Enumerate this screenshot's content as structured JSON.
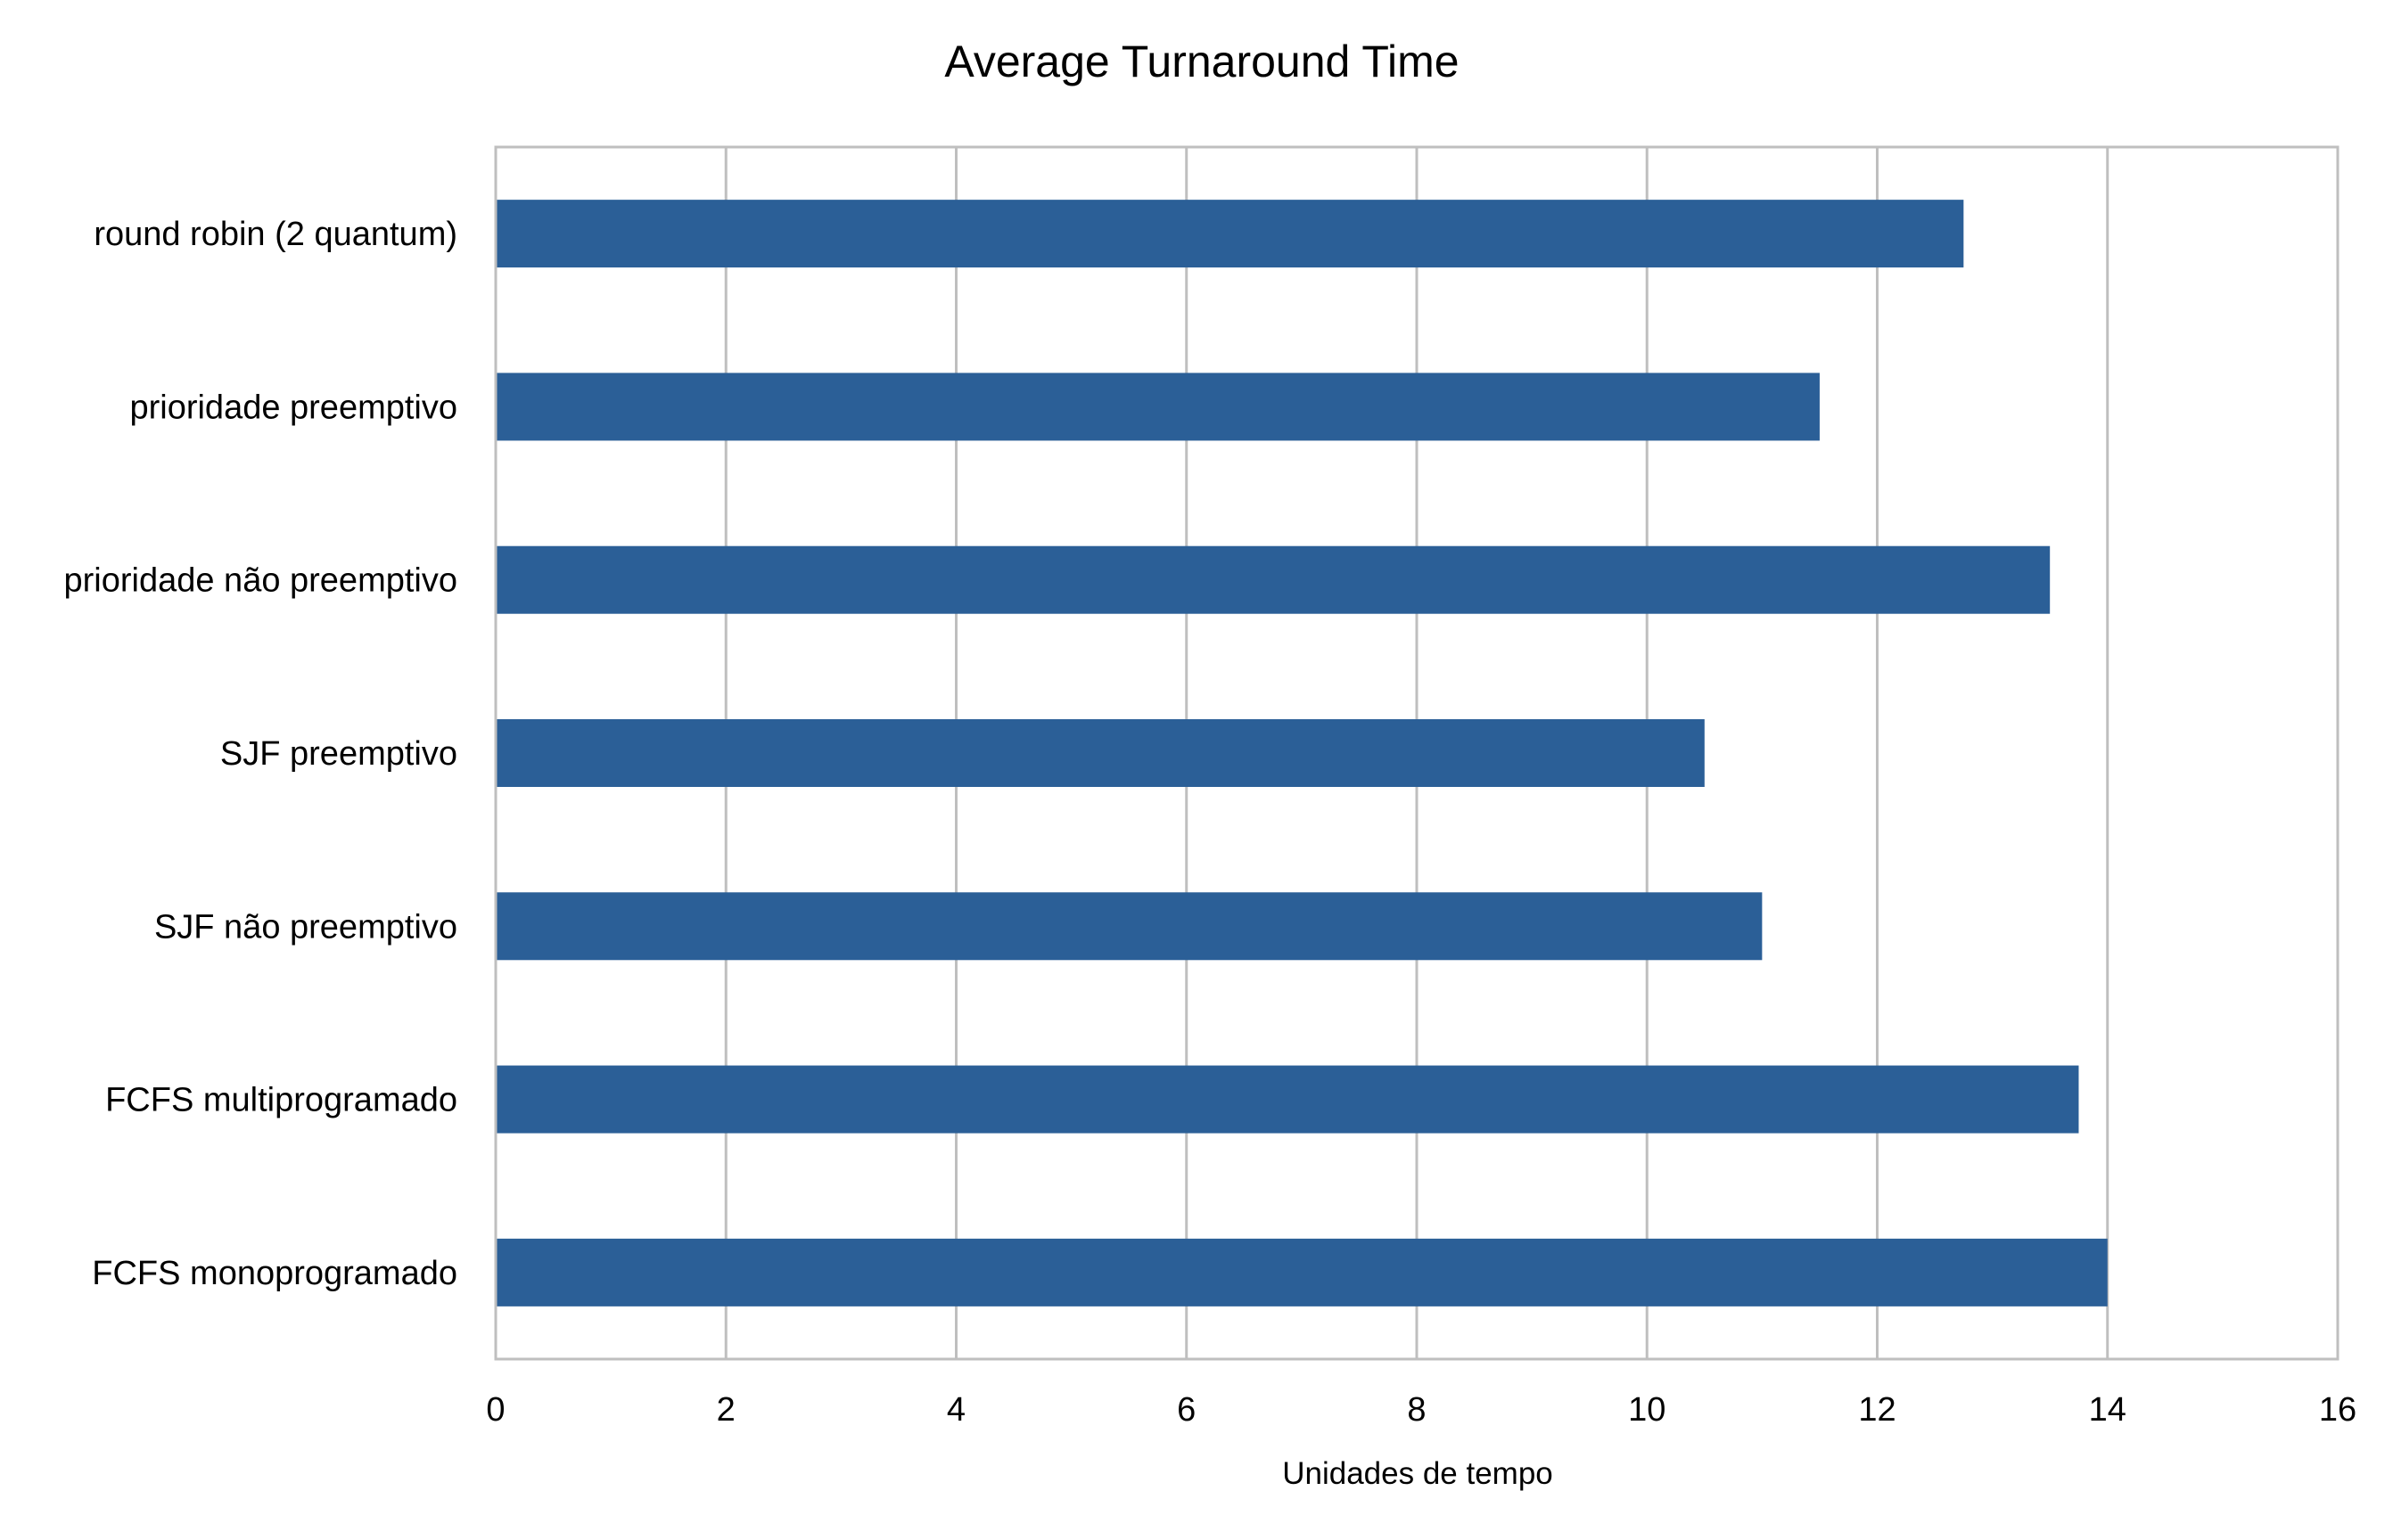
{
  "chart_data": {
    "type": "bar",
    "orientation": "horizontal",
    "title": "Average Turnaround Time",
    "xlabel": "Unidades de tempo",
    "ylabel": "",
    "xlim": [
      0,
      16
    ],
    "xticks": [
      0,
      2,
      4,
      6,
      8,
      10,
      12,
      14,
      16
    ],
    "grid": true,
    "legend": "none",
    "bar_color": "#2B5F97",
    "grid_color": "#BFBFBF",
    "categories": [
      "round robin (2 quantum)",
      "prioridade preemptivo",
      "prioridade não preemptivo",
      "SJF preemptivo",
      "SJF não preemptivo",
      "FCFS multiprogramado",
      "FCFS monoprogramado"
    ],
    "values": [
      12.75,
      11.5,
      13.5,
      10.5,
      11.0,
      13.75,
      14.0
    ]
  }
}
